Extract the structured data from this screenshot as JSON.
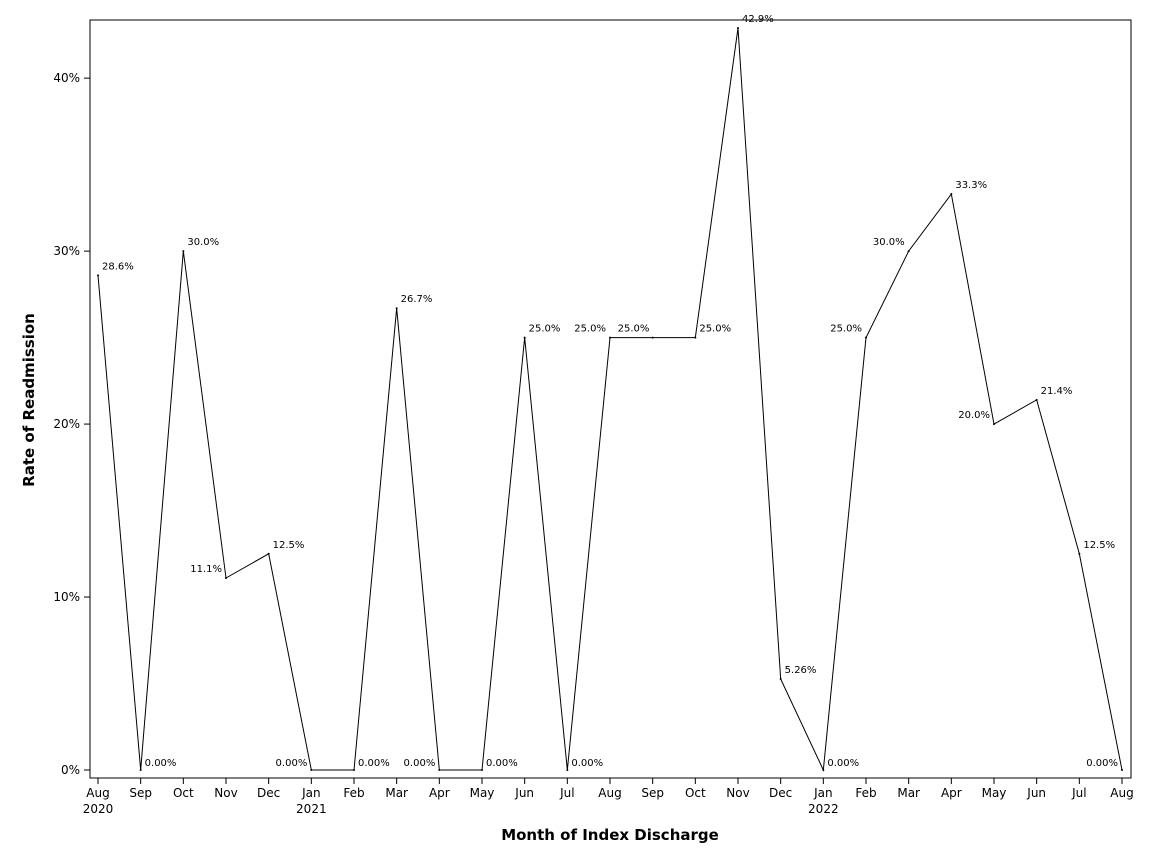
{
  "chart_data": {
    "type": "line",
    "title": "",
    "xlabel": "Month of Index Discharge",
    "ylabel": "Rate of Readmission",
    "ylim": [
      0,
      42.9
    ],
    "y_ticks": [
      {
        "value": 0,
        "label": "0%"
      },
      {
        "value": 10,
        "label": "10%"
      },
      {
        "value": 20,
        "label": "20%"
      },
      {
        "value": 30,
        "label": "30%"
      },
      {
        "value": 40,
        "label": "40%"
      }
    ],
    "grid": false,
    "legend": "none",
    "line_color": "#000000",
    "points": [
      {
        "month": "Aug",
        "year": "2020",
        "value": 28.6,
        "label": "28.6%",
        "label_side": "right"
      },
      {
        "month": "Sep",
        "year": "",
        "value": 0.0,
        "label": "0.00%",
        "label_side": "right"
      },
      {
        "month": "Oct",
        "year": "",
        "value": 30.0,
        "label": "30.0%",
        "label_side": "right"
      },
      {
        "month": "Nov",
        "year": "",
        "value": 11.1,
        "label": "11.1%",
        "label_side": "left"
      },
      {
        "month": "Dec",
        "year": "",
        "value": 12.5,
        "label": "12.5%",
        "label_side": "right"
      },
      {
        "month": "Jan",
        "year": "2021",
        "value": 0.0,
        "label": "0.00%",
        "label_side": "left"
      },
      {
        "month": "Feb",
        "year": "",
        "value": 0.0,
        "label": "0.00%",
        "label_side": "right"
      },
      {
        "month": "Mar",
        "year": "",
        "value": 26.7,
        "label": "26.7%",
        "label_side": "right"
      },
      {
        "month": "Apr",
        "year": "",
        "value": 0.0,
        "label": "0.00%",
        "label_side": "left"
      },
      {
        "month": "May",
        "year": "",
        "value": 0.0,
        "label": "0.00%",
        "label_side": "right"
      },
      {
        "month": "Jun",
        "year": "",
        "value": 25.0,
        "label": "25.0%",
        "label_side": "right"
      },
      {
        "month": "Jul",
        "year": "",
        "value": 0.0,
        "label": "0.00%",
        "label_side": "right"
      },
      {
        "month": "Aug",
        "year": "",
        "value": 25.0,
        "label": "25.0%",
        "label_side": "left"
      },
      {
        "month": "Sep",
        "year": "",
        "value": 25.0,
        "label": "25.0%",
        "label_side": "farleft"
      },
      {
        "month": "Oct",
        "year": "",
        "value": 25.0,
        "label": "25.0%",
        "label_side": "right"
      },
      {
        "month": "Nov",
        "year": "",
        "value": 42.9,
        "label": "42.9%",
        "label_side": "right"
      },
      {
        "month": "Dec",
        "year": "",
        "value": 5.26,
        "label": "5.26%",
        "label_side": "right"
      },
      {
        "month": "Jan",
        "year": "2022",
        "value": 0.0,
        "label": "0.00%",
        "label_side": "right"
      },
      {
        "month": "Feb",
        "year": "",
        "value": 25.0,
        "label": "25.0%",
        "label_side": "left"
      },
      {
        "month": "Mar",
        "year": "",
        "value": 30.0,
        "label": "30.0%",
        "label_side": "left"
      },
      {
        "month": "Apr",
        "year": "",
        "value": 33.3,
        "label": "33.3%",
        "label_side": "right"
      },
      {
        "month": "May",
        "year": "",
        "value": 20.0,
        "label": "20.0%",
        "label_side": "left"
      },
      {
        "month": "Jun",
        "year": "",
        "value": 21.4,
        "label": "21.4%",
        "label_side": "right"
      },
      {
        "month": "Jul",
        "year": "",
        "value": 12.5,
        "label": "12.5%",
        "label_side": "right"
      },
      {
        "month": "Aug",
        "year": "",
        "value": 0.0,
        "label": "0.00%",
        "label_side": "left"
      }
    ]
  }
}
